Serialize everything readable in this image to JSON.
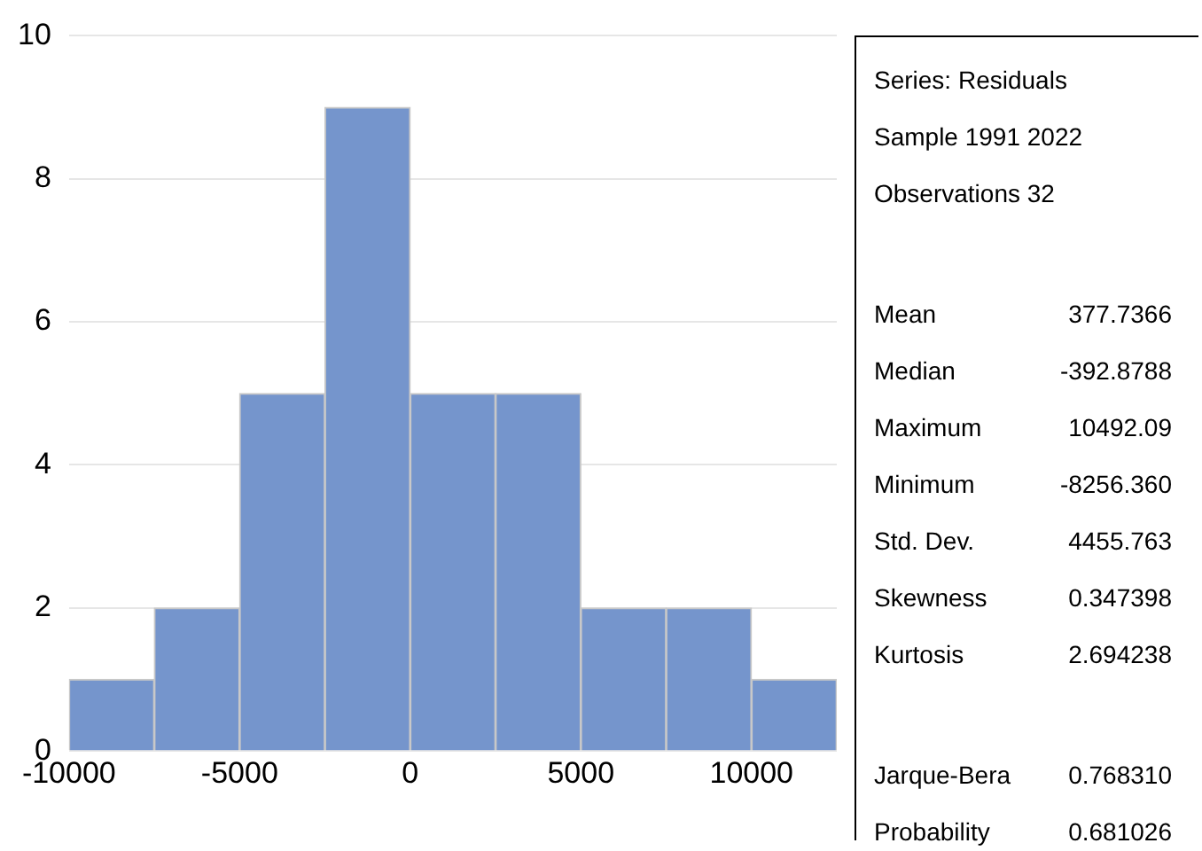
{
  "chart_data": [
    {
      "type": "histogram",
      "bins": [
        -10000,
        -7500,
        -5000,
        -2500,
        0,
        2500,
        5000,
        7500,
        10000,
        12500
      ],
      "values": [
        1,
        2,
        5,
        9,
        5,
        5,
        2,
        2,
        1
      ],
      "color": "#7595cc",
      "xlim": [
        -10000,
        12500
      ],
      "xticks": [
        -10000,
        -5000,
        0,
        5000,
        10000
      ],
      "ylim": [
        0,
        10
      ],
      "yticks": [
        0,
        2,
        4,
        6,
        8,
        10
      ],
      "grid": "y",
      "legend": false
    },
    {
      "type": "other",
      "annotations": [
        "Series: Residuals",
        "Sample 1991 2022",
        "Observations 32"
      ],
      "categories": [
        "Mean",
        "Median",
        "Maximum",
        "Minimum",
        "Std. Dev.",
        "Skewness",
        "Kurtosis",
        "Jarque-Bera",
        "Probability"
      ],
      "value_labels": [
        "377.7366",
        "-392.8788",
        "10492.09",
        "-8256.360",
        "4455.763",
        "0.347398",
        "2.694238",
        "0.768310",
        "0.681026"
      ]
    }
  ]
}
